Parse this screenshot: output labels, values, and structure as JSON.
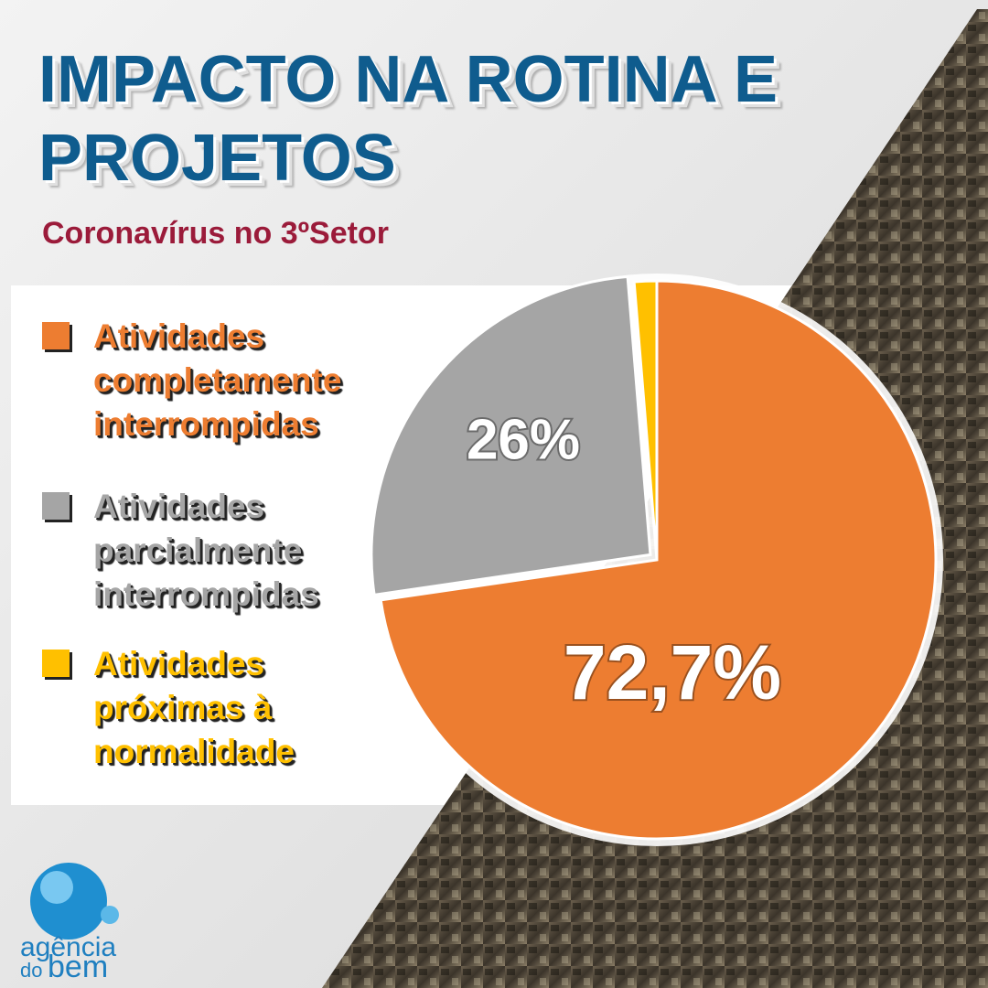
{
  "chart_data": {
    "type": "pie",
    "title": "IMPACTO NA ROTINA E PROJETOS",
    "subtitle": "Coronavírus no 3ºSetor",
    "categories": [
      "Atividades completamente interrompidas",
      "Atividades parcialmente interrompidas",
      "Atividades próximas à normalidade"
    ],
    "values": [
      72.7,
      26,
      1.3
    ],
    "value_labels": [
      "72,7%",
      "26%",
      null
    ],
    "colors": [
      "#ed7d31",
      "#a5a5a5",
      "#ffc000"
    ],
    "legend": "left"
  },
  "logo": {
    "line1": "agência",
    "line2": "do",
    "line3": "bem"
  }
}
